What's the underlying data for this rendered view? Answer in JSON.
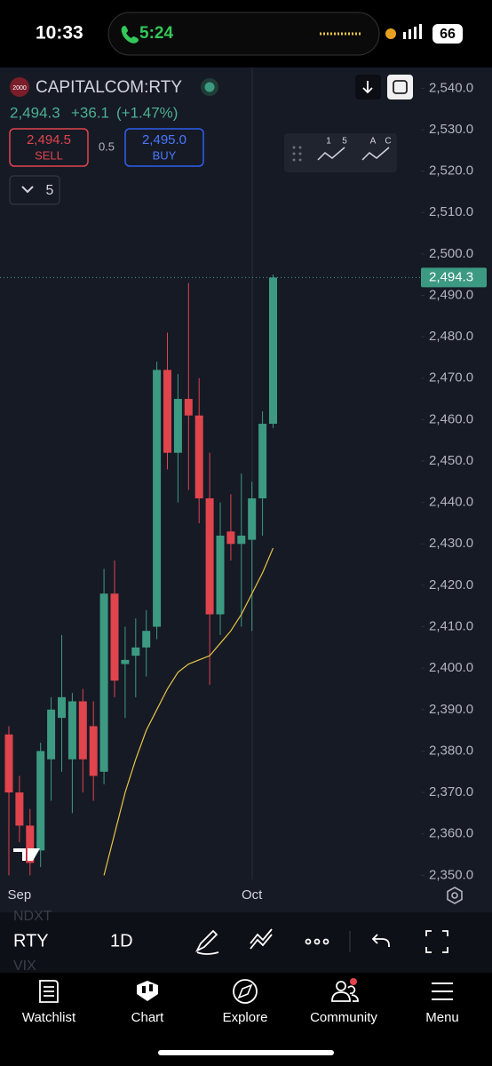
{
  "status_bar": {
    "time": "10:33",
    "call_time": "5:24",
    "battery": "66"
  },
  "header": {
    "badge": "2000",
    "symbol": "CAPITALCOM:RTY",
    "price": "2,494.3",
    "change": "+36.1",
    "change_pct": "(+1.47%)",
    "sell_price": "2,494.5",
    "sell_label": "SELL",
    "spread": "0.5",
    "buy_price": "2,495.0",
    "buy_label": "BUY",
    "indicator_count": "5",
    "mini_labels": [
      "1",
      "5",
      "A",
      "C"
    ]
  },
  "chart_data": {
    "type": "candlestick",
    "categories": [
      null,
      "Sep",
      null,
      null,
      null,
      null,
      null,
      null,
      null,
      null,
      null,
      null,
      null,
      null,
      null,
      null,
      null,
      null,
      null,
      null,
      null,
      null,
      null,
      "Oct",
      null,
      null
    ],
    "open": [
      2384,
      2370,
      2362,
      2356,
      2378,
      2388,
      2378,
      2392,
      2386,
      2375,
      2418,
      2401,
      2403,
      2405,
      2410,
      2472,
      2452,
      2465,
      2461,
      2441,
      2413,
      2433,
      2430,
      2431,
      2441,
      2459
    ],
    "high": [
      2386,
      2374,
      2366,
      2382,
      2393,
      2408,
      2394,
      2395,
      2392,
      2424,
      2426,
      2410,
      2412,
      2414,
      2474,
      2481,
      2471,
      2493,
      2470,
      2452,
      2440,
      2442,
      2447,
      2445,
      2462,
      2495
    ],
    "low": [
      2350,
      2358,
      2350,
      2352,
      2368,
      2375,
      2365,
      2370,
      2368,
      2372,
      2393,
      2388,
      2393,
      2398,
      2407,
      2448,
      2440,
      2443,
      2435,
      2396,
      2408,
      2426,
      2410,
      2409,
      2432,
      2458
    ],
    "close": [
      2370,
      2362,
      2353,
      2380,
      2390,
      2393,
      2392,
      2378,
      2374,
      2418,
      2397,
      2402,
      2405,
      2409,
      2472,
      2452,
      2465,
      2461,
      2441,
      2413,
      2432,
      2430,
      2432,
      2441,
      2459,
      2494.3
    ],
    "ma": [
      null,
      null,
      null,
      null,
      null,
      null,
      null,
      null,
      null,
      2350,
      2360,
      2370,
      2378,
      2385,
      2390,
      2395,
      2399,
      2401,
      2402,
      2403,
      2406,
      2409,
      2413,
      2418,
      2423,
      2429
    ],
    "up_color": "#3d9a82",
    "down_color": "#e0444d",
    "ma_color": "#e8c547",
    "ylim": [
      2349,
      2545
    ],
    "yticks": [
      {
        "value": 2350,
        "label": "2,350.0"
      },
      {
        "value": 2360,
        "label": "2,360.0"
      },
      {
        "value": 2370,
        "label": "2,370.0"
      },
      {
        "value": 2380,
        "label": "2,380.0"
      },
      {
        "value": 2390,
        "label": "2,390.0"
      },
      {
        "value": 2400,
        "label": "2,400.0"
      },
      {
        "value": 2410,
        "label": "2,410.0"
      },
      {
        "value": 2420,
        "label": "2,420.0"
      },
      {
        "value": 2430,
        "label": "2,430.0"
      },
      {
        "value": 2440,
        "label": "2,440.0"
      },
      {
        "value": 2450,
        "label": "2,450.0"
      },
      {
        "value": 2460,
        "label": "2,460.0"
      },
      {
        "value": 2470,
        "label": "2,470.0"
      },
      {
        "value": 2480,
        "label": "2,480.0"
      },
      {
        "value": 2490,
        "label": "2,490.0"
      },
      {
        "value": 2500,
        "label": "2,500.0"
      },
      {
        "value": 2510,
        "label": "2,510.0"
      },
      {
        "value": 2520,
        "label": "2,520.0"
      },
      {
        "value": 2530,
        "label": "2,530.0"
      },
      {
        "value": 2540,
        "label": "2,540.0"
      }
    ],
    "last_price": {
      "value": 2494.3,
      "label": "2,494.3"
    }
  },
  "toolbar": {
    "symbol": "RTY",
    "interval": "1D",
    "ghost_above": "NDXT",
    "ghost_below": "VIX"
  },
  "nav": [
    "Watchlist",
    "Chart",
    "Explore",
    "Community",
    "Menu"
  ]
}
